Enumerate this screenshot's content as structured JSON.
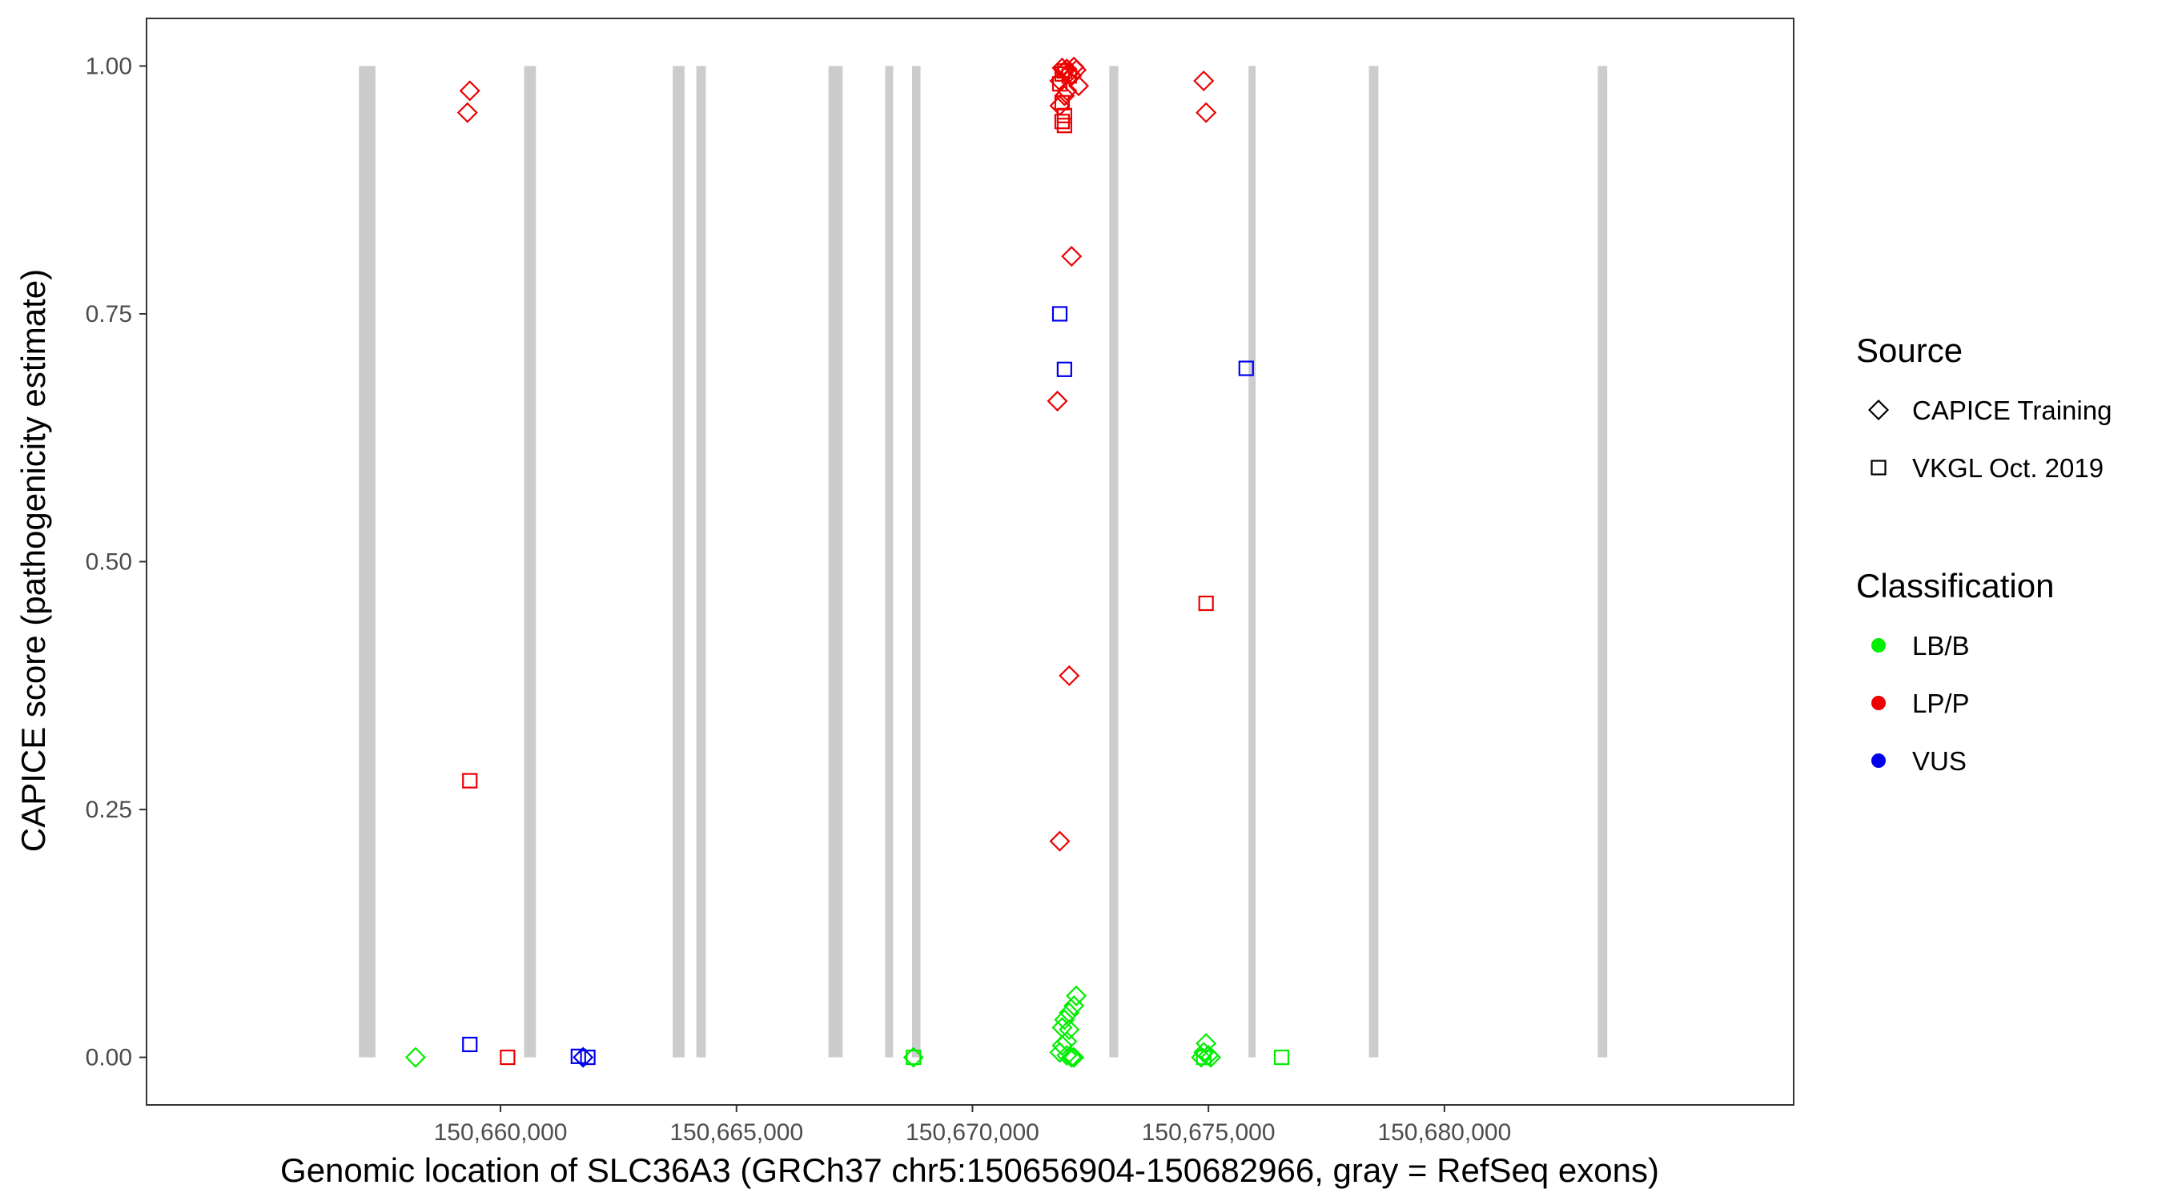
{
  "chart_data": {
    "type": "scatter",
    "title": "",
    "xlabel": "Genomic location of SLC36A3 (GRCh37 chr5:150656904-150682966, gray = RefSeq exons)",
    "ylabel": "CAPICE score (pathogenicity estimate)",
    "xlim": [
      150652500,
      150687400
    ],
    "ylim": [
      -0.048,
      1.048
    ],
    "x_ticks": [
      150660000,
      150665000,
      150670000,
      150675000,
      150680000
    ],
    "x_tick_labels": [
      "150,660,000",
      "150,665,000",
      "150,670,000",
      "150,675,000",
      "150,680,000"
    ],
    "y_ticks": [
      0,
      0.25,
      0.5,
      0.75,
      1
    ],
    "y_tick_labels": [
      "0.00",
      "0.25",
      "0.50",
      "0.75",
      "1.00"
    ],
    "grid": false,
    "legend_placement": "right",
    "exons": [
      [
        150657000,
        150657350
      ],
      [
        150660500,
        150660750
      ],
      [
        150663650,
        150663900
      ],
      [
        150664150,
        150664350
      ],
      [
        150666950,
        150667250
      ],
      [
        150668150,
        150668320
      ],
      [
        150668720,
        150668900
      ],
      [
        150672900,
        150673090
      ],
      [
        150675850,
        150676000
      ],
      [
        150678400,
        150678600
      ],
      [
        150683250,
        150683450
      ]
    ],
    "legends": [
      {
        "title": "Source",
        "entries": [
          {
            "label": "CAPICE Training",
            "shape": "diamond"
          },
          {
            "label": "VKGL Oct. 2019",
            "shape": "square"
          }
        ]
      },
      {
        "title": "Classification",
        "entries": [
          {
            "label": "LB/B",
            "color": "#00ee00"
          },
          {
            "label": "LP/P",
            "color": "#ee0000"
          },
          {
            "label": "VUS",
            "color": "#0000ee"
          }
        ]
      }
    ],
    "colors": {
      "LB/B": "#00ee00",
      "LP/P": "#ee0000",
      "VUS": "#0000ee",
      "exon": "#cccccc"
    },
    "series": [
      {
        "source": "CAPICE Training",
        "classification": "LP/P",
        "points": [
          [
            150659350,
            0.975
          ],
          [
            150659300,
            0.953
          ],
          [
            150671900,
            0.998
          ],
          [
            150671950,
            0.995
          ],
          [
            150672000,
            0.997
          ],
          [
            150672050,
            0.993
          ],
          [
            150672100,
            0.99
          ],
          [
            150671850,
            0.985
          ],
          [
            150672150,
            0.999
          ],
          [
            150672200,
            0.996
          ],
          [
            150672000,
            0.975
          ],
          [
            150672250,
            0.98
          ],
          [
            150671950,
            0.97
          ],
          [
            150671850,
            0.96
          ],
          [
            150672100,
            0.808
          ],
          [
            150671800,
            0.662
          ],
          [
            150672050,
            0.385
          ],
          [
            150671850,
            0.218
          ],
          [
            150674900,
            0.985
          ],
          [
            150674950,
            0.953
          ]
        ]
      },
      {
        "source": "CAPICE Training",
        "classification": "LB/B",
        "points": [
          [
            150658200,
            0.0
          ],
          [
            150668750,
            0.0
          ],
          [
            150672200,
            0.062
          ],
          [
            150672150,
            0.052
          ],
          [
            150672050,
            0.045
          ],
          [
            150671950,
            0.038
          ],
          [
            150671900,
            0.03
          ],
          [
            150672050,
            0.028
          ],
          [
            150672000,
            0.016
          ],
          [
            150671900,
            0.012
          ],
          [
            150671850,
            0.005
          ],
          [
            150672000,
            0.002
          ],
          [
            150672150,
            0.0
          ],
          [
            150672100,
            0.0
          ],
          [
            150674950,
            0.014
          ],
          [
            150674900,
            0.005
          ],
          [
            150675000,
            0.002
          ],
          [
            150674850,
            0.0
          ],
          [
            150675050,
            0.0
          ]
        ]
      },
      {
        "source": "CAPICE Training",
        "classification": "VUS",
        "points": [
          [
            150661750,
            0.0
          ]
        ]
      },
      {
        "source": "VKGL Oct. 2019",
        "classification": "LP/P",
        "points": [
          [
            150671900,
            0.992
          ],
          [
            150671950,
            0.995
          ],
          [
            150672050,
            0.99
          ],
          [
            150671850,
            0.982
          ],
          [
            150671900,
            0.963
          ],
          [
            150671950,
            0.95
          ],
          [
            150671900,
            0.944
          ],
          [
            150671950,
            0.94
          ],
          [
            150659350,
            0.279
          ],
          [
            150660150,
            0.0
          ],
          [
            150674950,
            0.458
          ]
        ]
      },
      {
        "source": "VKGL Oct. 2019",
        "classification": "VUS",
        "points": [
          [
            150671850,
            0.75
          ],
          [
            150671950,
            0.694
          ],
          [
            150675800,
            0.695
          ],
          [
            150659350,
            0.013
          ],
          [
            150661650,
            0.001
          ],
          [
            150661850,
            0.0
          ]
        ]
      },
      {
        "source": "VKGL Oct. 2019",
        "classification": "LB/B",
        "points": [
          [
            150668750,
            0.0
          ],
          [
            150674900,
            0.0
          ],
          [
            150676550,
            0.0
          ]
        ]
      }
    ]
  }
}
